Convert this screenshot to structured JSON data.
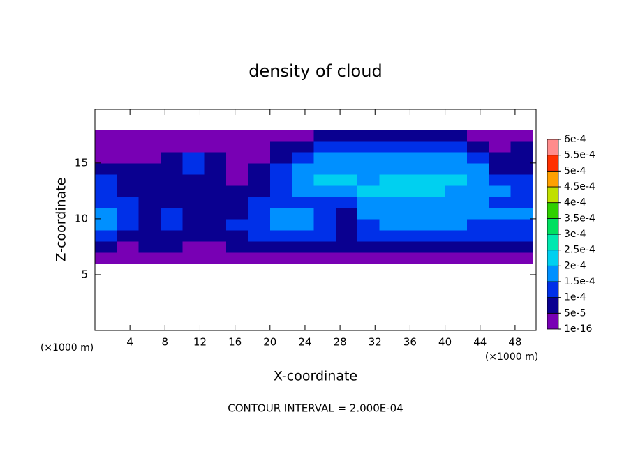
{
  "chart_data": {
    "type": "contour",
    "title": "density of cloud",
    "x_label": "X-coordinate",
    "y_label": "Z-coordinate",
    "x_unit": "(×1000 m)",
    "y_unit": "(×1000 m)",
    "footer": "CONTOUR INTERVAL = 2.000E-04",
    "xlim": [
      0,
      50.4
    ],
    "ylim": [
      0,
      19.8
    ],
    "xticks": [
      4,
      8,
      12,
      16,
      20,
      24,
      28,
      32,
      36,
      40,
      44,
      48
    ],
    "yticks": [
      5,
      10,
      15
    ],
    "x_edges": [
      0,
      2.5,
      5,
      7.5,
      10,
      12.5,
      15,
      17.5,
      20,
      22.5,
      25,
      27.5,
      30,
      32.5,
      35,
      37.5,
      40,
      42.5,
      45,
      47.5,
      50
    ],
    "z_edges": [
      6,
      7,
      8,
      9,
      10,
      11,
      12,
      13,
      14,
      15,
      16,
      17,
      18
    ],
    "values": [
      [
        3e-05,
        3e-05,
        3e-05,
        3e-05,
        3e-05,
        3e-05,
        3e-05,
        3e-05,
        3e-05,
        3e-05,
        3e-05,
        3e-05,
        3e-05,
        3e-05,
        3e-05,
        3e-05,
        3e-05,
        3e-05,
        3e-05,
        3e-05
      ],
      [
        6e-05,
        4e-05,
        7e-05,
        5e-05,
        4e-05,
        3e-05,
        6e-05,
        8e-05,
        8e-05,
        7e-05,
        6e-05,
        5e-05,
        7e-05,
        8e-05,
        8e-05,
        7e-05,
        6e-05,
        5e-05,
        6e-05,
        7e-05
      ],
      [
        0.00012,
        9e-05,
        7e-05,
        6e-05,
        6e-05,
        5e-05,
        8e-05,
        0.00012,
        0.00013,
        0.00013,
        0.00012,
        8e-05,
        0.00011,
        0.00013,
        0.00013,
        0.00013,
        0.00012,
        0.00011,
        0.0001,
        0.00011
      ],
      [
        0.00015,
        0.00011,
        7e-05,
        0.0001,
        8e-05,
        7e-05,
        0.0001,
        0.00014,
        0.00016,
        0.00015,
        0.00013,
        7e-05,
        0.00013,
        0.00015,
        0.00015,
        0.00015,
        0.00015,
        0.00014,
        0.00013,
        0.00014
      ],
      [
        0.00015,
        0.00012,
        8e-05,
        0.0001,
        9e-05,
        8e-05,
        9e-05,
        0.00013,
        0.00016,
        0.00016,
        0.00014,
        8e-05,
        0.00015,
        0.00017,
        0.00017,
        0.00017,
        0.00017,
        0.00016,
        0.00015,
        0.00015
      ],
      [
        0.00013,
        0.0001,
        7e-05,
        9e-05,
        7e-05,
        6e-05,
        7e-05,
        0.00011,
        0.00013,
        0.00014,
        0.00013,
        0.00012,
        0.00016,
        0.00018,
        0.00018,
        0.00017,
        0.00017,
        0.00016,
        0.00014,
        0.00013
      ],
      [
        0.00012,
        8e-05,
        6e-05,
        8e-05,
        7e-05,
        6e-05,
        5e-05,
        8e-05,
        0.00012,
        0.00016,
        0.00018,
        0.00019,
        0.0002,
        0.0002,
        0.0002,
        0.0002,
        0.00019,
        0.00017,
        0.00015,
        0.00013
      ],
      [
        0.0001,
        7e-05,
        6e-05,
        5e-05,
        8e-05,
        6e-05,
        4e-05,
        7e-05,
        0.00011,
        0.00017,
        0.0002,
        0.0002,
        0.00019,
        0.0002,
        0.0002,
        0.0002,
        0.0002,
        0.00018,
        0.00012,
        0.0001
      ],
      [
        6e-05,
        5e-05,
        5e-05,
        5e-05,
        0.0001,
        6e-05,
        4e-05,
        5e-05,
        0.0001,
        0.00016,
        0.00018,
        0.00018,
        0.00017,
        0.00018,
        0.00018,
        0.00018,
        0.00017,
        0.00015,
        8e-05,
        6e-05
      ],
      [
        4e-05,
        4e-05,
        4e-05,
        5e-05,
        0.00011,
        5e-05,
        3e-05,
        4e-05,
        8e-05,
        0.00013,
        0.00015,
        0.00015,
        0.00015,
        0.00016,
        0.00016,
        0.00016,
        0.00015,
        0.00012,
        6e-05,
        8e-05
      ],
      [
        3e-05,
        3e-05,
        3e-05,
        3e-05,
        4e-05,
        3e-05,
        3e-05,
        3e-05,
        5e-05,
        9e-05,
        0.00012,
        0.00012,
        0.00012,
        0.00012,
        0.00013,
        0.00013,
        0.00011,
        8e-05,
        4e-05,
        5e-05
      ],
      [
        3e-05,
        3e-05,
        3e-05,
        3e-05,
        3e-05,
        3e-05,
        3e-05,
        3e-05,
        3e-05,
        4e-05,
        6e-05,
        7e-05,
        7e-05,
        7e-05,
        7e-05,
        6e-05,
        5e-05,
        4e-05,
        3e-05,
        3e-05
      ]
    ],
    "colorbar_ticks": [
      {
        "value": 1e-16,
        "label": "1e-16"
      },
      {
        "value": 5e-05,
        "label": "5e-5"
      },
      {
        "value": 0.0001,
        "label": "1e-4"
      },
      {
        "value": 0.00015,
        "label": "1.5e-4"
      },
      {
        "value": 0.0002,
        "label": "2e-4"
      },
      {
        "value": 0.00025,
        "label": "2.5e-4"
      },
      {
        "value": 0.0003,
        "label": "3e-4"
      },
      {
        "value": 0.00035,
        "label": "3.5e-4"
      },
      {
        "value": 0.0004,
        "label": "4e-4"
      },
      {
        "value": 0.00045,
        "label": "4.5e-4"
      },
      {
        "value": 0.0005,
        "label": "5e-4"
      },
      {
        "value": 0.00055,
        "label": "5.5e-4"
      },
      {
        "value": 0.0006,
        "label": "6e-4"
      }
    ],
    "colors": [
      "#7800b4",
      "#0a0090",
      "#0030e8",
      "#0090ff",
      "#00d0f0",
      "#00e8b0",
      "#00e060",
      "#30d000",
      "#c0e000",
      "#ffa000",
      "#ff3000",
      "#ff8c8c"
    ]
  }
}
